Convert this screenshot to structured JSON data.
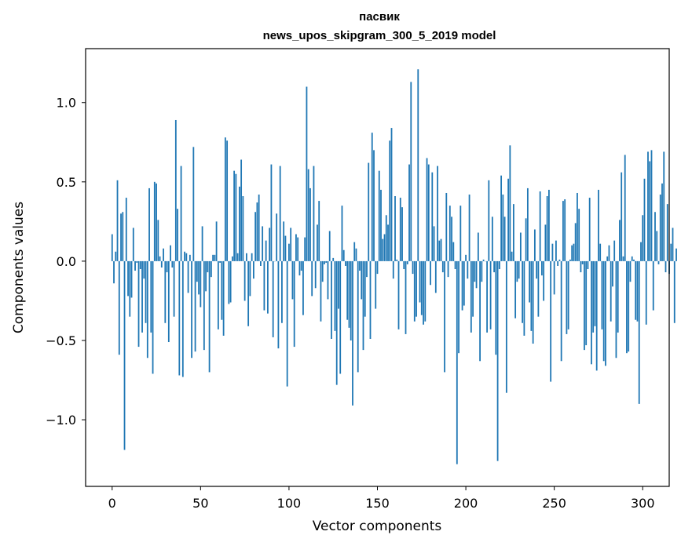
{
  "chart_data": {
    "type": "bar",
    "title_lines": [
      "пасвик",
      "news_upos_skipgram_300_5_2019 model"
    ],
    "xlabel": "Vector components",
    "ylabel": "Components values",
    "xlim": [
      -15,
      315
    ],
    "ylim": [
      -1.42,
      1.34
    ],
    "xticks": [
      0,
      50,
      100,
      150,
      200,
      250,
      300
    ],
    "xtick_labels": [
      "0",
      "50",
      "100",
      "150",
      "200",
      "250",
      "300"
    ],
    "yticks": [
      1.0,
      0.5,
      0.0,
      -0.5,
      -1.0
    ],
    "ytick_labels": [
      "1.0",
      "0.5",
      "0.0",
      "−0.5",
      "−1.0"
    ],
    "grid": false,
    "bar_color": "#1f77b4",
    "x_start": 0,
    "values": [
      0.17,
      -0.14,
      0.06,
      0.51,
      -0.59,
      0.3,
      0.31,
      -1.19,
      0.4,
      -0.22,
      -0.35,
      -0.23,
      0.21,
      -0.06,
      -0.01,
      -0.54,
      -0.05,
      -0.45,
      -0.11,
      -0.39,
      -0.61,
      0.46,
      -0.45,
      -0.71,
      0.5,
      0.49,
      0.26,
      0.03,
      -0.04,
      0.08,
      -0.39,
      -0.07,
      -0.51,
      0.1,
      -0.04,
      -0.35,
      0.89,
      0.33,
      -0.72,
      0.6,
      -0.73,
      0.06,
      0.05,
      -0.2,
      0.04,
      -0.61,
      0.72,
      -0.57,
      -0.13,
      -0.21,
      -0.29,
      0.22,
      -0.56,
      -0.19,
      -0.07,
      -0.7,
      -0.1,
      0.04,
      0.04,
      0.25,
      -0.43,
      -0.01,
      -0.37,
      -0.47,
      0.78,
      0.76,
      -0.27,
      -0.26,
      0.03,
      0.57,
      0.55,
      0.05,
      0.47,
      0.64,
      0.41,
      -0.25,
      0.05,
      -0.41,
      -0.22,
      0.05,
      -0.11,
      0.31,
      0.37,
      0.42,
      -0.03,
      0.22,
      -0.31,
      0.13,
      -0.33,
      0.21,
      0.61,
      -0.48,
      0.0,
      0.3,
      -0.55,
      0.6,
      -0.39,
      0.25,
      0.16,
      -0.79,
      0.11,
      0.21,
      -0.24,
      -0.54,
      0.17,
      0.15,
      -0.09,
      -0.06,
      -0.34,
      0.15,
      1.1,
      0.58,
      0.46,
      -0.22,
      0.6,
      -0.17,
      0.23,
      0.38,
      -0.38,
      -0.13,
      -0.02,
      -0.01,
      -0.24,
      0.19,
      -0.49,
      0.02,
      -0.44,
      -0.78,
      -0.3,
      -0.71,
      0.35,
      0.07,
      -0.03,
      -0.37,
      -0.42,
      -0.5,
      -0.91,
      0.12,
      0.08,
      -0.7,
      -0.06,
      -0.24,
      -0.56,
      -0.35,
      -0.1,
      0.62,
      -0.49,
      0.81,
      0.7,
      -0.3,
      -0.08,
      0.57,
      0.45,
      0.14,
      0.17,
      0.29,
      0.23,
      0.76,
      0.84,
      -0.11,
      0.41,
      0.01,
      -0.43,
      0.4,
      0.34,
      -0.05,
      -0.46,
      -0.02,
      0.61,
      1.13,
      -0.08,
      -0.38,
      -0.35,
      1.21,
      -0.26,
      -0.34,
      -0.4,
      -0.38,
      0.65,
      0.61,
      -0.15,
      0.56,
      0.22,
      -0.2,
      0.6,
      0.13,
      0.14,
      -0.07,
      -0.7,
      0.43,
      -0.1,
      0.35,
      0.28,
      0.12,
      -0.05,
      -1.28,
      -0.58,
      0.35,
      -0.31,
      -0.28,
      0.04,
      -0.11,
      0.42,
      -0.45,
      -0.35,
      -0.13,
      -0.17,
      0.18,
      -0.63,
      -0.13,
      0.01,
      0.0,
      -0.45,
      0.51,
      -0.43,
      0.28,
      -0.07,
      -0.59,
      -1.26,
      -0.05,
      0.54,
      0.42,
      0.28,
      -0.83,
      0.52,
      0.73,
      0.06,
      0.36,
      -0.36,
      -0.13,
      -0.11,
      0.18,
      -0.39,
      -0.47,
      0.27,
      0.46,
      -0.26,
      -0.44,
      -0.52,
      0.2,
      -0.11,
      -0.35,
      0.44,
      -0.09,
      -0.25,
      0.23,
      0.41,
      0.45,
      -0.76,
      0.11,
      -0.21,
      0.13,
      -0.03,
      0.01,
      -0.63,
      0.38,
      0.39,
      -0.46,
      -0.43,
      0.01,
      0.1,
      0.11,
      0.24,
      0.43,
      0.33,
      -0.07,
      -0.02,
      -0.56,
      -0.53,
      -0.05,
      0.4,
      -0.65,
      -0.45,
      -0.41,
      -0.69,
      0.45,
      0.11,
      -0.43,
      -0.63,
      -0.66,
      0.03,
      0.1,
      -0.38,
      -0.16,
      0.13,
      -0.61,
      -0.45,
      0.26,
      0.56,
      0.03,
      0.67,
      -0.58,
      -0.57,
      -0.13,
      0.03,
      0.01,
      -0.37,
      -0.38,
      -0.9,
      0.12,
      0.29,
      0.52,
      -0.4,
      0.69,
      0.63,
      0.7,
      -0.31,
      0.31,
      0.19,
      -0.02,
      0.42,
      0.49,
      0.69,
      -0.07,
      0.36,
      -0.08,
      0.11,
      0.21,
      -0.39,
      0.08
    ]
  }
}
